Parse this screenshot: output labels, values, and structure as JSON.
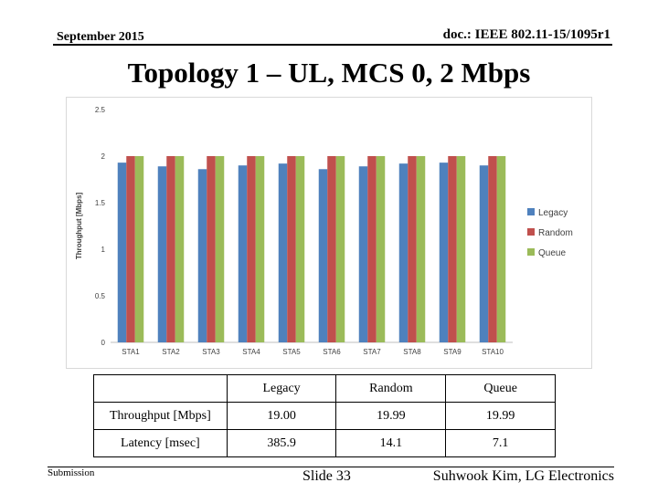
{
  "header": {
    "date": "September 2015",
    "doc": "doc.: IEEE 802.11-15/1095r1"
  },
  "title": "Topology 1 – UL, MCS 0, 2 Mbps",
  "chart_data": {
    "type": "bar",
    "ylabel": "Throughput [Mbps]",
    "xlabel": "",
    "ylim": [
      0,
      2.5
    ],
    "yticks": [
      "0",
      "0.5",
      "1",
      "1.5",
      "2",
      "2.5"
    ],
    "grid": false,
    "legend_position": "right",
    "categories": [
      "STA1",
      "STA2",
      "STA3",
      "STA4",
      "STA5",
      "STA6",
      "STA7",
      "STA8",
      "STA9",
      "STA10"
    ],
    "series": [
      {
        "name": "Legacy",
        "color": "#4f81bd",
        "values": [
          1.93,
          1.89,
          1.86,
          1.9,
          1.92,
          1.86,
          1.89,
          1.92,
          1.93,
          1.9
        ]
      },
      {
        "name": "Random",
        "color": "#c0504d",
        "values": [
          2.0,
          2.0,
          2.0,
          2.0,
          2.0,
          2.0,
          2.0,
          2.0,
          2.0,
          2.0
        ]
      },
      {
        "name": "Queue",
        "color": "#9bbb59",
        "values": [
          2.0,
          2.0,
          2.0,
          2.0,
          2.0,
          2.0,
          2.0,
          2.0,
          2.0,
          2.0
        ]
      }
    ]
  },
  "table": {
    "columns": [
      "",
      "Legacy",
      "Random",
      "Queue"
    ],
    "rows": [
      {
        "label": "Throughput [Mbps]",
        "values": [
          "19.00",
          "19.99",
          "19.99"
        ]
      },
      {
        "label": "Latency [msec]",
        "values": [
          "385.9",
          "14.1",
          "7.1"
        ]
      }
    ]
  },
  "footer": {
    "left": "Submission",
    "center": "Slide 33",
    "right": "Suhwook Kim, LG Electronics"
  }
}
